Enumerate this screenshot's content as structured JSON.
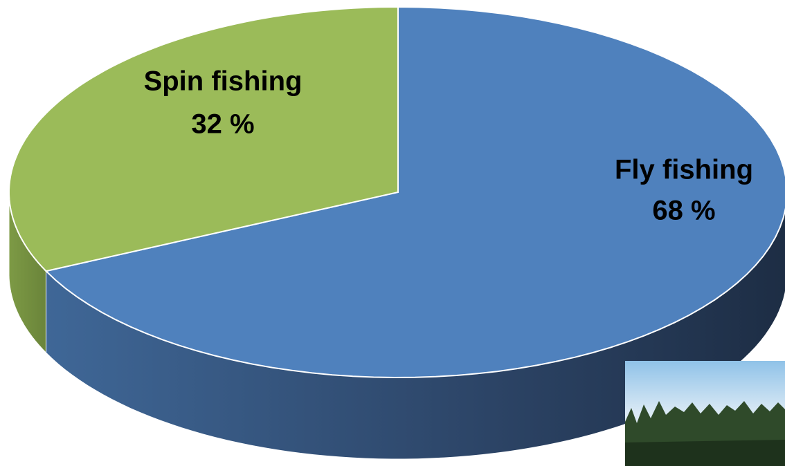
{
  "chart_data": {
    "type": "pie",
    "categories": [
      "Spin fishing",
      "Fly fishing"
    ],
    "values": [
      32,
      68
    ],
    "value_labels": [
      "32 %",
      "68 %"
    ],
    "colors": [
      "#9bbb59",
      "#4f81bd"
    ]
  }
}
